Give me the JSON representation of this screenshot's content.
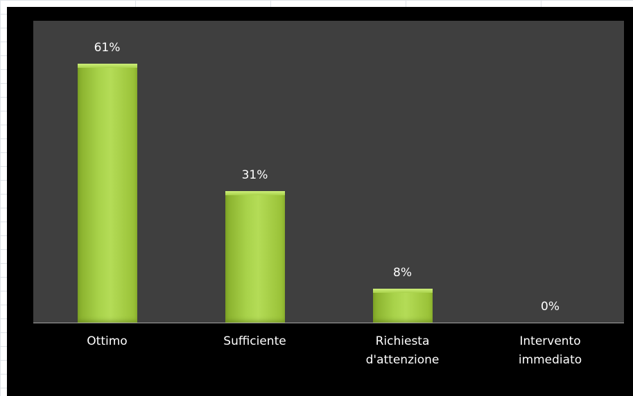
{
  "chart_data": {
    "type": "bar",
    "categories": [
      [
        "Ottimo"
      ],
      [
        "Sufficiente"
      ],
      [
        "Richiesta",
        "d'attenzione"
      ],
      [
        "Intervento",
        "immediato"
      ]
    ],
    "values": [
      61,
      31,
      8,
      0
    ],
    "data_labels": [
      "61%",
      "31%",
      "8%",
      "0%"
    ],
    "unit": "%",
    "title": "",
    "xlabel": "",
    "ylabel": "",
    "ylim": [
      0,
      61
    ],
    "grid": false,
    "legend": "none",
    "colors": {
      "bar": "#9dc63b",
      "plot_background": "#3f3f3f",
      "chart_background": "#000000",
      "text": "#ffffff"
    }
  }
}
